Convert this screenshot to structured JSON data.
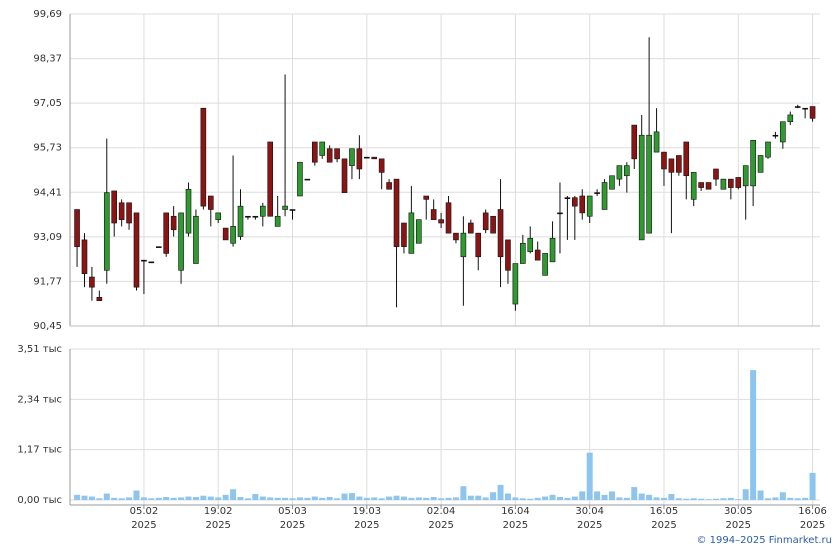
{
  "chart_data": {
    "type": "candlestick",
    "candles": {
      "open": [
        93.9,
        93.0,
        91.9,
        91.3,
        92.1,
        94.45,
        94.1,
        94.1,
        93.8,
        92.4,
        92.35,
        92.8,
        93.8,
        93.7,
        92.1,
        93.2,
        92.3,
        96.9,
        94.3,
        93.6,
        93.35,
        92.9,
        93.1,
        93.7,
        93.7,
        93.7,
        95.9,
        93.4,
        93.9,
        93.9,
        94.3,
        94.8,
        95.9,
        95.5,
        95.7,
        95.7,
        95.4,
        95.2,
        95.7,
        95.45,
        95.45,
        95.4,
        94.7,
        94.8,
        93.5,
        92.6,
        92.9,
        94.3,
        93.9,
        93.6,
        94.1,
        93.2,
        92.5,
        93.5,
        93.2,
        93.8,
        93.7,
        93.9,
        93.0,
        91.1,
        92.3,
        92.65,
        92.7,
        91.95,
        92.35,
        93.8,
        94.25,
        94.25,
        94.3,
        93.7,
        94.4,
        93.9,
        94.5,
        94.8,
        94.9,
        96.4,
        93.0,
        93.2,
        95.6,
        95.6,
        95.4,
        95.5,
        95.9,
        94.2,
        94.7,
        94.7,
        95.1,
        94.5,
        94.8,
        94.85,
        94.6,
        94.6,
        95.0,
        95.45,
        96.1,
        95.9,
        96.5,
        96.95,
        96.9,
        96.95
      ],
      "high": [
        93.9,
        93.2,
        92.2,
        91.5,
        96.0,
        94.45,
        94.2,
        94.1,
        93.8,
        92.4,
        92.35,
        92.8,
        93.8,
        94.0,
        93.8,
        94.7,
        93.9,
        96.9,
        94.3,
        93.8,
        93.35,
        95.5,
        94.5,
        93.7,
        93.7,
        94.1,
        95.9,
        94.3,
        97.9,
        93.9,
        95.3,
        94.8,
        95.9,
        95.9,
        95.8,
        95.7,
        95.4,
        95.7,
        96.1,
        95.45,
        95.45,
        95.4,
        94.8,
        94.8,
        93.5,
        94.6,
        93.6,
        94.3,
        94.2,
        93.8,
        94.3,
        93.2,
        93.7,
        93.6,
        93.2,
        93.9,
        93.7,
        94.8,
        93.0,
        92.3,
        93.15,
        93.4,
        92.95,
        92.6,
        93.55,
        94.7,
        94.3,
        94.3,
        94.5,
        94.3,
        94.5,
        94.8,
        94.9,
        95.2,
        95.3,
        96.4,
        96.7,
        99.0,
        96.9,
        95.6,
        95.4,
        95.5,
        95.9,
        95.0,
        94.7,
        94.7,
        95.1,
        94.8,
        94.8,
        94.85,
        95.2,
        95.95,
        95.5,
        95.9,
        96.2,
        96.5,
        96.8,
        97.0,
        96.9,
        96.95
      ],
      "low": [
        92.2,
        91.6,
        91.2,
        91.2,
        91.7,
        93.1,
        93.4,
        93.3,
        91.5,
        91.4,
        92.35,
        92.8,
        92.5,
        93.1,
        91.7,
        93.1,
        92.3,
        93.9,
        93.4,
        93.5,
        93.0,
        92.8,
        93.0,
        93.6,
        93.6,
        93.4,
        93.7,
        93.4,
        93.7,
        93.6,
        94.3,
        94.8,
        95.2,
        95.4,
        95.3,
        95.3,
        94.4,
        94.8,
        94.8,
        95.45,
        95.4,
        94.5,
        94.5,
        91.0,
        92.6,
        92.6,
        92.9,
        93.6,
        93.6,
        93.35,
        93.2,
        92.9,
        91.05,
        93.2,
        92.1,
        93.2,
        93.2,
        91.6,
        91.7,
        90.9,
        92.3,
        92.6,
        92.4,
        91.95,
        92.35,
        92.6,
        93.0,
        93.0,
        93.6,
        93.5,
        94.3,
        93.9,
        94.5,
        94.6,
        94.4,
        95.1,
        93.0,
        93.2,
        95.6,
        94.6,
        93.2,
        94.9,
        94.2,
        94.0,
        94.45,
        94.5,
        94.6,
        94.5,
        94.2,
        94.5,
        93.6,
        94.0,
        95.0,
        95.4,
        96.0,
        95.7,
        96.4,
        96.9,
        96.6,
        96.5
      ],
      "close": [
        92.8,
        92.0,
        91.6,
        91.2,
        94.4,
        93.5,
        93.6,
        93.5,
        91.6,
        92.4,
        92.35,
        92.8,
        92.6,
        93.3,
        93.8,
        94.5,
        93.7,
        94.0,
        93.9,
        93.8,
        93.0,
        93.4,
        94.0,
        93.7,
        93.7,
        94.0,
        93.7,
        93.7,
        94.0,
        93.9,
        95.3,
        94.8,
        95.3,
        95.9,
        95.3,
        95.4,
        94.4,
        95.7,
        95.1,
        95.45,
        95.4,
        95.0,
        94.5,
        92.8,
        92.8,
        93.8,
        93.6,
        94.2,
        93.6,
        93.5,
        93.2,
        93.0,
        93.2,
        93.2,
        92.5,
        93.3,
        93.2,
        92.5,
        92.1,
        92.3,
        92.9,
        93.05,
        92.4,
        92.6,
        93.05,
        93.8,
        94.25,
        94.0,
        93.8,
        94.3,
        94.4,
        94.7,
        94.9,
        95.2,
        95.2,
        95.4,
        96.1,
        96.1,
        96.2,
        95.1,
        95.0,
        95.0,
        94.9,
        95.0,
        94.55,
        94.5,
        94.8,
        94.8,
        94.55,
        94.55,
        95.2,
        95.95,
        95.5,
        95.9,
        96.1,
        96.5,
        96.7,
        96.95,
        96.9,
        96.6
      ]
    },
    "up_color": "#2f9a2f",
    "down_color": "#8b1515",
    "xlim": [
      -0.95,
      100
    ],
    "xticks": [
      {
        "value": 9,
        "label": "05.02\n2025"
      },
      {
        "value": 19,
        "label": "19.02\n2025"
      },
      {
        "value": 29,
        "label": "05.03\n2025"
      },
      {
        "value": 39,
        "label": "19.03\n2025"
      },
      {
        "value": 49,
        "label": "02.04\n2025"
      },
      {
        "value": 59,
        "label": "16.04\n2025"
      },
      {
        "value": 69,
        "label": "30.04\n2025"
      },
      {
        "value": 79,
        "label": "16.05\n2025"
      },
      {
        "value": 89,
        "label": "30.05\n2025"
      },
      {
        "value": 99,
        "label": "16.06\n2025"
      }
    ],
    "ylim": [
      90.45,
      99.69
    ],
    "yticks": [
      {
        "value": 90.45,
        "label": "90,45"
      },
      {
        "value": 91.77,
        "label": "91,77"
      },
      {
        "value": 93.09,
        "label": "93,09"
      },
      {
        "value": 94.41,
        "label": "94,41"
      },
      {
        "value": 95.73,
        "label": "95,73"
      },
      {
        "value": 97.05,
        "label": "97,05"
      },
      {
        "value": 98.37,
        "label": "98,37"
      },
      {
        "value": 99.69,
        "label": "99,69"
      }
    ],
    "grid": true,
    "volume": {
      "type": "bar",
      "color": "#8ec5ef",
      "values": [
        0.12,
        0.1,
        0.08,
        0.04,
        0.15,
        0.05,
        0.04,
        0.06,
        0.22,
        0.06,
        0.04,
        0.05,
        0.07,
        0.05,
        0.06,
        0.08,
        0.07,
        0.1,
        0.08,
        0.06,
        0.12,
        0.25,
        0.07,
        0.04,
        0.14,
        0.08,
        0.06,
        0.05,
        0.05,
        0.04,
        0.06,
        0.05,
        0.08,
        0.05,
        0.07,
        0.04,
        0.15,
        0.16,
        0.08,
        0.05,
        0.06,
        0.04,
        0.08,
        0.1,
        0.08,
        0.05,
        0.06,
        0.05,
        0.07,
        0.04,
        0.05,
        0.06,
        0.32,
        0.1,
        0.1,
        0.06,
        0.18,
        0.35,
        0.15,
        0.06,
        0.04,
        0.03,
        0.05,
        0.08,
        0.12,
        0.07,
        0.05,
        0.08,
        0.2,
        1.1,
        0.2,
        0.12,
        0.2,
        0.06,
        0.05,
        0.3,
        0.15,
        0.12,
        0.06,
        0.05,
        0.14,
        0.04,
        0.03,
        0.04,
        0.03,
        0.02,
        0.03,
        0.04,
        0.05,
        0.02,
        0.25,
        3.02,
        0.22,
        0.04,
        0.06,
        0.18,
        0.05,
        0.04,
        0.05,
        0.63
      ],
      "ylim": [
        0,
        3.51
      ],
      "yticks": [
        {
          "value": 0,
          "label": "0,00 тыс"
        },
        {
          "value": 1.17,
          "label": "1,17 тыс"
        },
        {
          "value": 2.34,
          "label": "2,34 тыс"
        },
        {
          "value": 3.51,
          "label": "3,51 тыс"
        }
      ]
    }
  },
  "footer": "© 1994–2025 Finmarket.ru"
}
